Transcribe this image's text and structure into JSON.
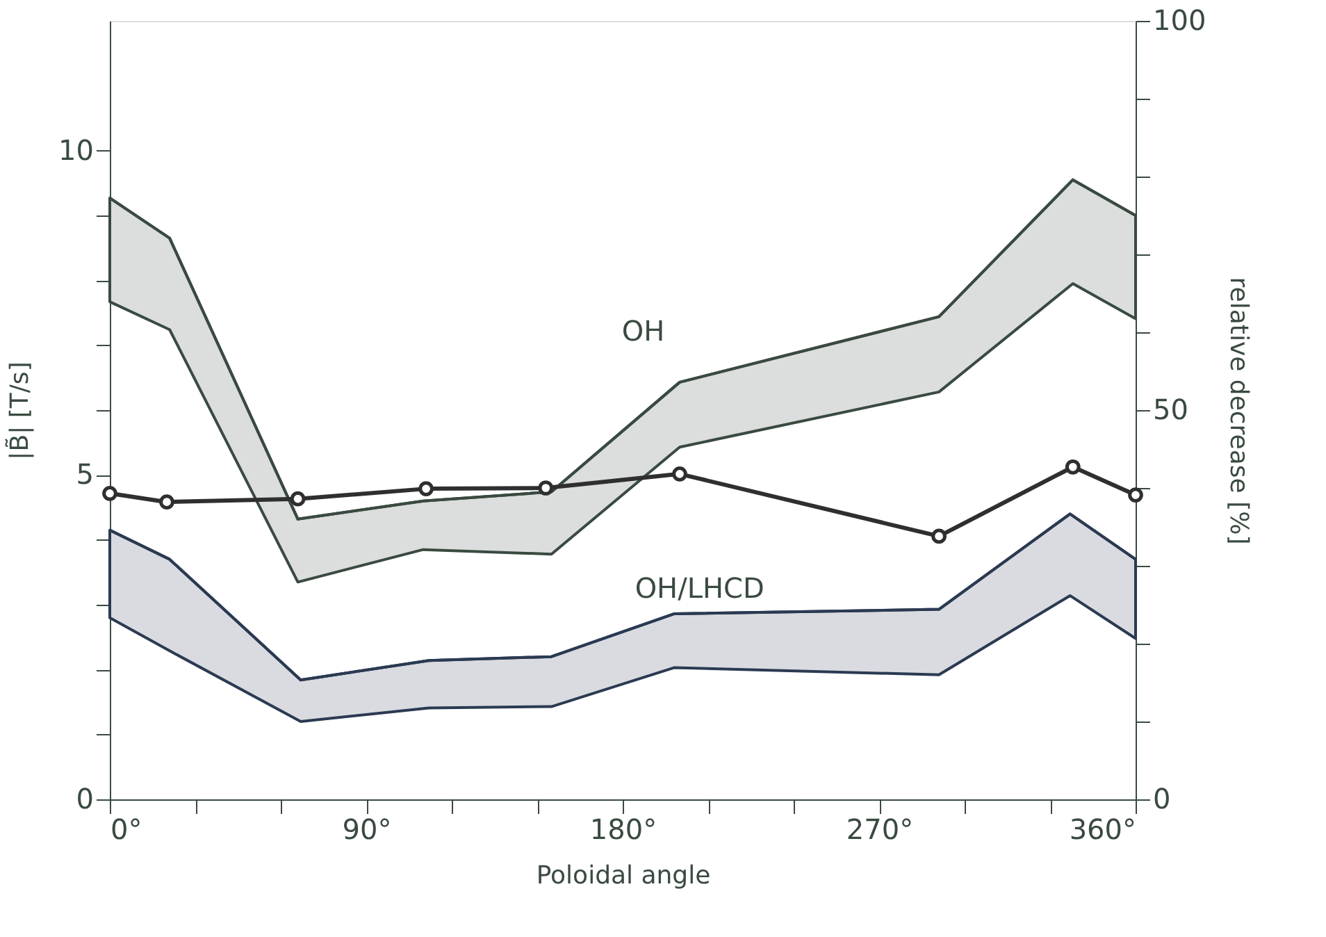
{
  "chart_data": {
    "type": "line",
    "xlabel": "Poloidal angle",
    "ylabel": "|B̃| [T/s]",
    "y2label": "relative decrease [%]",
    "xlim": [
      0,
      360
    ],
    "xticks": [
      {
        "value": 0,
        "label": "0°"
      },
      {
        "value": 30,
        "label": null
      },
      {
        "value": 60,
        "label": null
      },
      {
        "value": 90,
        "label": "90°"
      },
      {
        "value": 120,
        "label": null
      },
      {
        "value": 150,
        "label": null
      },
      {
        "value": 180,
        "label": "180°"
      },
      {
        "value": 210,
        "label": null
      },
      {
        "value": 240,
        "label": null
      },
      {
        "value": 270,
        "label": "270°"
      },
      {
        "value": 300,
        "label": null
      },
      {
        "value": 330,
        "label": null
      },
      {
        "value": 360,
        "label": "360°"
      }
    ],
    "ylim": [
      0,
      12
    ],
    "yticks": [
      0,
      {
        "value": 1,
        "label": null
      },
      {
        "value": 2,
        "label": null
      },
      {
        "value": 3,
        "label": null
      },
      {
        "value": 4,
        "label": null
      },
      5,
      {
        "value": 6,
        "label": null
      },
      {
        "value": 7,
        "label": null
      },
      {
        "value": 8,
        "label": null
      },
      {
        "value": 9,
        "label": null
      },
      10
    ],
    "y2lim": [
      0,
      100
    ],
    "y2ticks": [
      0,
      {
        "value": 10,
        "label": null
      },
      {
        "value": 20,
        "label": null
      },
      {
        "value": 30,
        "label": null
      },
      {
        "value": 40,
        "label": null
      },
      50,
      {
        "value": 60,
        "label": null
      },
      {
        "value": 70,
        "label": null
      },
      {
        "value": 80,
        "label": null
      },
      {
        "value": 90,
        "label": null
      },
      100
    ],
    "grid": false,
    "series": [
      {
        "color": "#3a4a40",
        "marker": "none",
        "x": [
          0,
          21,
          66,
          110,
          155,
          200,
          291,
          338,
          360
        ],
        "values": [
          9.27,
          8.65,
          4.32,
          4.6,
          4.74,
          6.43,
          7.44,
          9.55,
          9.0
        ],
        "upper": [
          9.27,
          8.65,
          4.32,
          4.6,
          4.74,
          6.43,
          7.44,
          9.55,
          9.0
        ],
        "lower": [
          7.67,
          7.24,
          3.35,
          3.85,
          3.78,
          5.43,
          6.28,
          7.95,
          7.41
        ]
      },
      {
        "color": "#2b3a52",
        "marker": "none",
        "x": [
          0,
          21,
          67,
          112,
          155,
          198,
          291,
          337,
          360
        ],
        "values": [
          4.15,
          3.7,
          1.84,
          2.14,
          2.2,
          2.86,
          2.93,
          4.4,
          3.7
        ],
        "upper": [
          4.15,
          3.7,
          1.84,
          2.14,
          2.2,
          2.86,
          2.93,
          4.4,
          3.7
        ],
        "lower": [
          2.8,
          2.29,
          1.2,
          1.41,
          1.43,
          2.03,
          1.92,
          3.14,
          2.48
        ]
      },
      {
        "type": "line",
        "axis": "y2",
        "color": "#2f2f2f",
        "marker": "circle",
        "line_style": "solid",
        "x": [
          0,
          20,
          66,
          111,
          153,
          200,
          291,
          338,
          360
        ],
        "values": [
          39.3,
          38.2,
          38.6,
          39.9,
          40.0,
          41.8,
          33.8,
          42.7,
          39.1
        ]
      }
    ],
    "annotations": [
      "OH",
      "OH/LHCD"
    ]
  }
}
